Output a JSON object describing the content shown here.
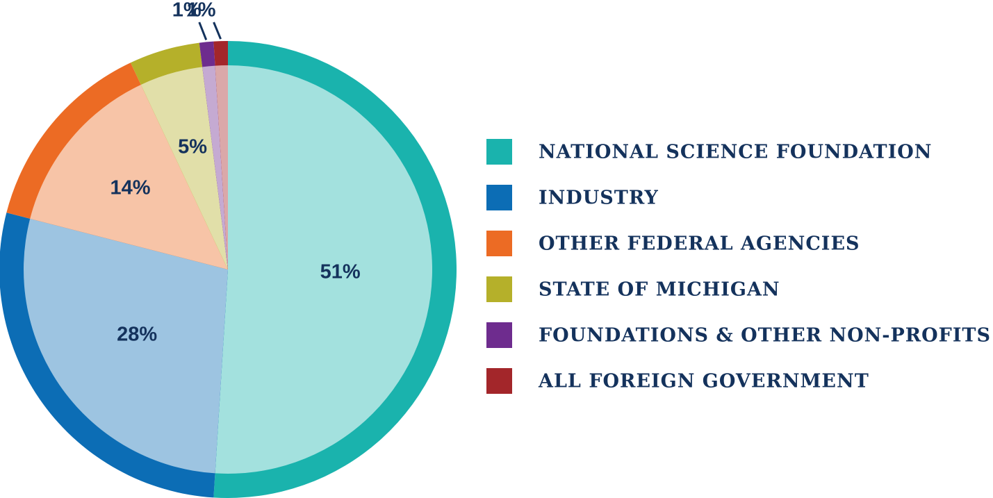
{
  "chart_data": {
    "type": "pie",
    "categories": [
      "NATIONAL SCIENCE FOUNDATION",
      "INDUSTRY",
      "OTHER FEDERAL AGENCIES",
      "STATE OF MICHIGAN",
      "FOUNDATIONS & OTHER NON-PROFITS",
      "ALL FOREIGN GOVERNMENT"
    ],
    "values": [
      51,
      28,
      14,
      5,
      1,
      1
    ],
    "value_labels": [
      "51%",
      "28%",
      "14%",
      "5%",
      "1%",
      "1%"
    ],
    "colors": [
      "#1ab3ad",
      "#0c6db5",
      "#ec6b24",
      "#b5b02a",
      "#6e2c8e",
      "#a3262a"
    ],
    "legend": "right"
  }
}
